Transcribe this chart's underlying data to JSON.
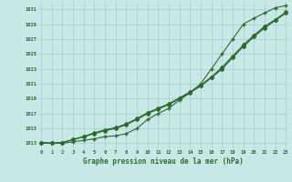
{
  "x": [
    0,
    1,
    2,
    3,
    4,
    5,
    6,
    7,
    8,
    9,
    10,
    11,
    12,
    13,
    14,
    15,
    16,
    17,
    18,
    19,
    20,
    21,
    22,
    23
  ],
  "line1": [
    1013.1,
    1013.0,
    1013.1,
    1013.5,
    1013.9,
    1014.3,
    1014.7,
    1015.0,
    1015.5,
    1016.2,
    1017.0,
    1017.6,
    1018.2,
    1019.0,
    1019.8,
    1020.7,
    1021.8,
    1023.0,
    1024.5,
    1026.0,
    1027.3,
    1028.5,
    1029.5,
    1030.5
  ],
  "line2": [
    1013.1,
    1013.0,
    1013.1,
    1013.5,
    1013.9,
    1014.4,
    1014.8,
    1015.1,
    1015.6,
    1016.3,
    1017.1,
    1017.7,
    1018.3,
    1019.1,
    1019.9,
    1020.8,
    1021.9,
    1023.2,
    1024.7,
    1026.2,
    1027.5,
    1028.7,
    1029.6,
    1030.6
  ],
  "line3_cross": [
    1013.1,
    1013.0,
    1013.0,
    1013.2,
    1013.4,
    1013.6,
    1013.9,
    1014.0,
    1014.3,
    1015.0,
    1016.2,
    1017.0,
    1017.7,
    1018.8,
    1019.8,
    1021.0,
    1023.0,
    1025.0,
    1027.0,
    1029.0,
    1029.8,
    1030.5,
    1031.2,
    1031.5
  ],
  "line_color": "#2d6a2d",
  "bg_color": "#c8e8e8",
  "grid_color": "#a8cccc",
  "ylabel_ticks": [
    1013,
    1015,
    1017,
    1019,
    1021,
    1023,
    1025,
    1027,
    1029,
    1031
  ],
  "xlabel": "Graphe pression niveau de la mer (hPa)",
  "ylim": [
    1012.2,
    1032.0
  ],
  "xlim": [
    -0.3,
    23.3
  ]
}
